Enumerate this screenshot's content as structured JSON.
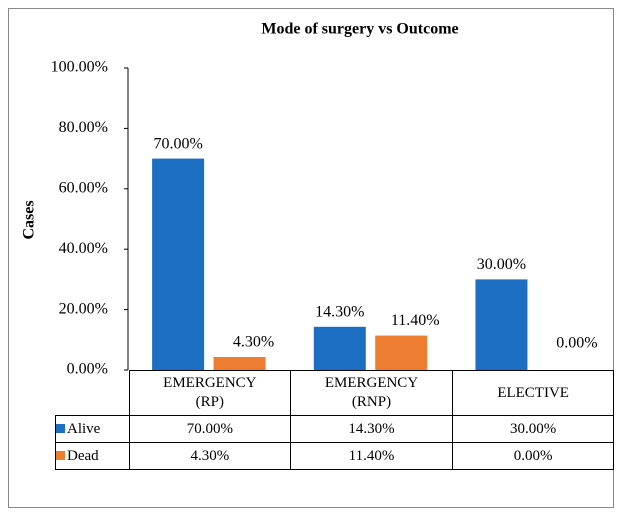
{
  "chart_data": {
    "type": "bar",
    "title": "Mode of surgery vs Outcome",
    "y_label": "Cases",
    "categories": [
      "EMERGENCY (RP)",
      "EMERGENCY (RNP)",
      "ELECTIVE"
    ],
    "series": [
      {
        "name": "Alive",
        "color": "#1b6ec2",
        "values": [
          70,
          14.3,
          30
        ],
        "value_labels": [
          "70.00%",
          "14.30%",
          "30.00%"
        ]
      },
      {
        "name": "Dead",
        "color": "#ed7d31",
        "values": [
          4.3,
          11.4,
          0
        ],
        "value_labels": [
          "4.30%",
          "11.40%",
          "0.00%"
        ]
      }
    ],
    "ylim": [
      0,
      100
    ],
    "yticks": [
      {
        "value": 0,
        "label": "0.00%"
      },
      {
        "value": 20,
        "label": "20.00%"
      },
      {
        "value": 40,
        "label": "40.00%"
      },
      {
        "value": 60,
        "label": "60.00%"
      },
      {
        "value": 80,
        "label": "80.00%"
      },
      {
        "value": 100,
        "label": "100.00%"
      }
    ],
    "grid": false,
    "data_table": true
  }
}
